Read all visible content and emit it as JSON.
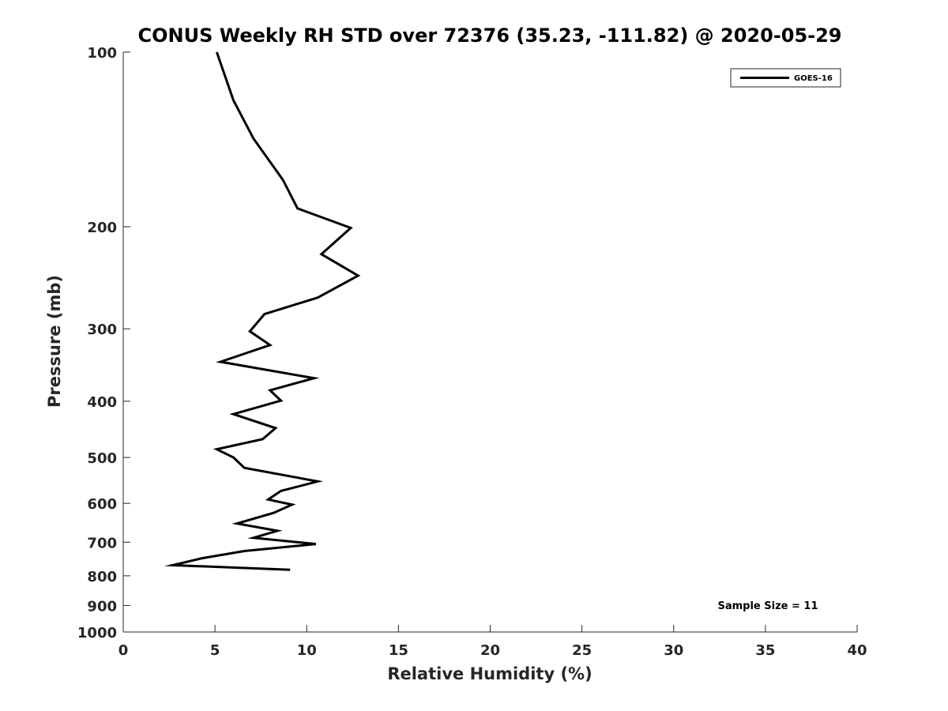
{
  "chart_data": {
    "type": "line",
    "title": "CONUS Weekly RH STD over 72376 (35.23, -111.82) @ 2020-05-29",
    "xlabel": "Relative Humidity (%)",
    "ylabel": "Pressure (mb)",
    "xlim": [
      0,
      40
    ],
    "ylim": [
      100,
      1000
    ],
    "y_scale": "log",
    "y_reversed": true,
    "x_ticks": [
      0,
      5,
      10,
      15,
      20,
      25,
      30,
      35,
      40
    ],
    "y_ticks": [
      100,
      200,
      300,
      400,
      500,
      600,
      700,
      800,
      900,
      1000
    ],
    "grid": false,
    "legend_position": "top-right",
    "annotation": "Sample Size = 11",
    "series": [
      {
        "name": "GOES-16",
        "color": "#000000",
        "points": [
          {
            "x": 5.1,
            "y": 100
          },
          {
            "x": 6.0,
            "y": 121
          },
          {
            "x": 7.1,
            "y": 141
          },
          {
            "x": 8.7,
            "y": 166
          },
          {
            "x": 9.5,
            "y": 186
          },
          {
            "x": 12.4,
            "y": 201
          },
          {
            "x": 10.8,
            "y": 223
          },
          {
            "x": 12.8,
            "y": 243
          },
          {
            "x": 10.6,
            "y": 265
          },
          {
            "x": 7.7,
            "y": 283
          },
          {
            "x": 6.9,
            "y": 303
          },
          {
            "x": 8.0,
            "y": 320
          },
          {
            "x": 5.3,
            "y": 342
          },
          {
            "x": 10.4,
            "y": 365
          },
          {
            "x": 8.0,
            "y": 383
          },
          {
            "x": 8.6,
            "y": 399
          },
          {
            "x": 6.0,
            "y": 421
          },
          {
            "x": 8.3,
            "y": 445
          },
          {
            "x": 7.6,
            "y": 465
          },
          {
            "x": 5.1,
            "y": 484
          },
          {
            "x": 6.0,
            "y": 500
          },
          {
            "x": 6.6,
            "y": 521
          },
          {
            "x": 10.6,
            "y": 550
          },
          {
            "x": 8.6,
            "y": 571
          },
          {
            "x": 7.9,
            "y": 591
          },
          {
            "x": 9.2,
            "y": 603
          },
          {
            "x": 8.2,
            "y": 623
          },
          {
            "x": 6.2,
            "y": 650
          },
          {
            "x": 8.4,
            "y": 669
          },
          {
            "x": 7.1,
            "y": 688
          },
          {
            "x": 10.5,
            "y": 705
          },
          {
            "x": 6.6,
            "y": 725
          },
          {
            "x": 4.3,
            "y": 746
          },
          {
            "x": 2.7,
            "y": 767
          },
          {
            "x": 9.1,
            "y": 781
          }
        ]
      }
    ]
  }
}
